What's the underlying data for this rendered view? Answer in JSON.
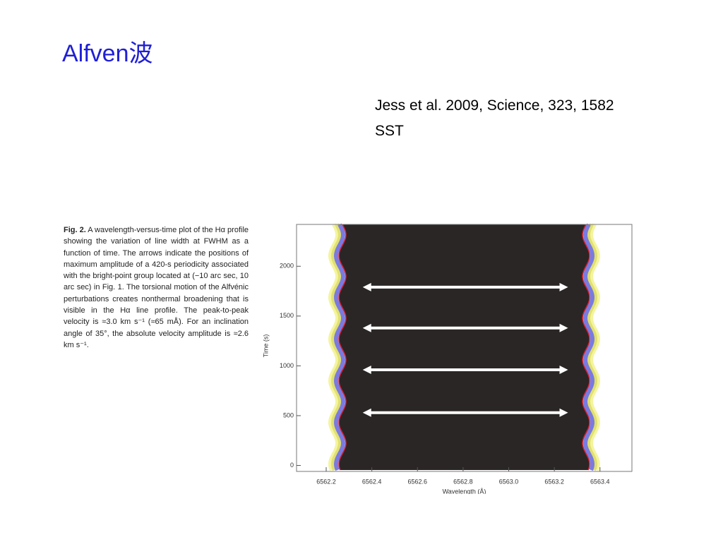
{
  "header": {
    "title": "Alfven波"
  },
  "reference": {
    "citation": "Jess et al. 2009, Science, 323, 1582",
    "instrument": "SST"
  },
  "caption": {
    "label": "Fig. 2.",
    "text": "A wavelength-versus-time plot of the Hα profile showing the variation of line width at FWHM as a function of time. The arrows indicate the positions of maximum amplitude of a 420-s periodicity associated with the bright-point group located at (−10 arc sec, 10 arc sec) in Fig. 1. The torsional motion of the Alfvénic perturbations creates nonthermal broadening that is visible in the Hα line profile. The peak-to-peak velocity is ≈3.0 km s⁻¹ (≈65 mÅ). For an inclination angle of 35°, the absolute velocity amplitude is ≈2.6 km s⁻¹."
  },
  "figure": {
    "xlabel": "Wavelength (Å)",
    "ylabel": "Time (s)",
    "xlim": [
      6562.07,
      6563.54
    ],
    "ylim": [
      -60,
      2420
    ],
    "xticks": [
      {
        "value": 6562.2,
        "label": "6562.2"
      },
      {
        "value": 6562.4,
        "label": "6562.4"
      },
      {
        "value": 6562.6,
        "label": "6562.6"
      },
      {
        "value": 6562.8,
        "label": "6562.8"
      },
      {
        "value": 6563.0,
        "label": "6563.0"
      },
      {
        "value": 6563.2,
        "label": "6563.2"
      },
      {
        "value": 6563.4,
        "label": "6563.4"
      }
    ],
    "yticks": [
      0,
      500,
      1000,
      1500,
      2000
    ],
    "arrows": [
      {
        "time": 530,
        "from": 6562.36,
        "to": 6563.26
      },
      {
        "time": 960,
        "from": 6562.36,
        "to": 6563.26
      },
      {
        "time": 1380,
        "from": 6562.36,
        "to": 6563.26
      },
      {
        "time": 1790,
        "from": 6562.36,
        "to": 6563.26
      }
    ]
  }
}
